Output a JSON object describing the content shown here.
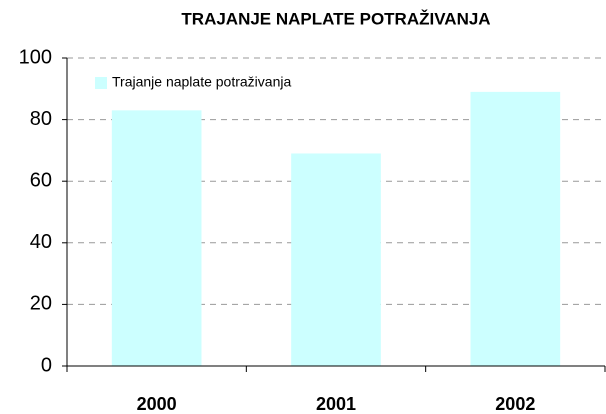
{
  "chart_data": {
    "type": "bar",
    "title": "TRAJANJE NAPLATE POTRAŽIVANJA",
    "categories": [
      "2000",
      "2001",
      "2002"
    ],
    "series": [
      {
        "name": "Trajanje naplate potraživanja",
        "color": "#ccffff",
        "values": [
          83,
          69,
          89
        ]
      }
    ],
    "ylim": [
      0,
      100
    ],
    "yticks": [
      0,
      20,
      40,
      60,
      80,
      100
    ],
    "grid": true,
    "legend": "top-left"
  }
}
